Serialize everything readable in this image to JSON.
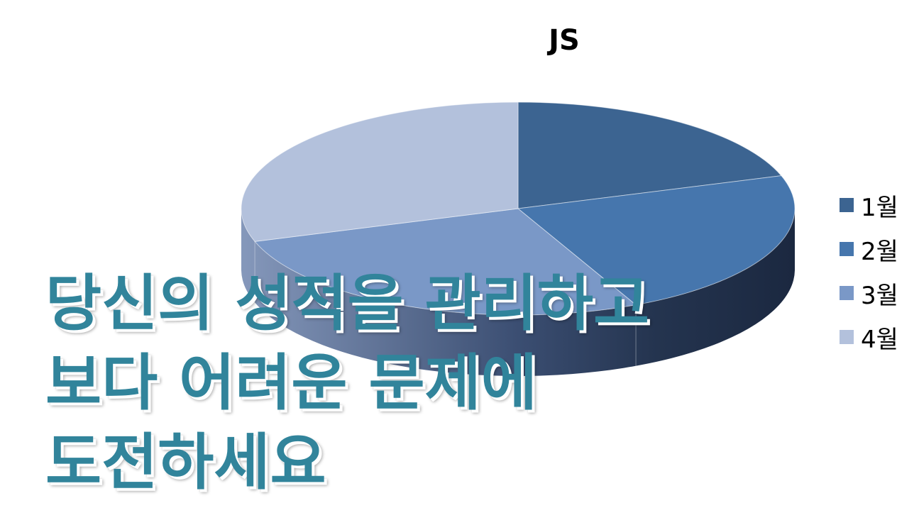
{
  "chart_data": {
    "type": "pie",
    "title": "JS",
    "categories": [
      "1월",
      "2월",
      "3월",
      "4월"
    ],
    "values": [
      20,
      23,
      27,
      30
    ],
    "legend_position": "right",
    "three_d": true
  },
  "colors": {
    "top": [
      "#3c6491",
      "#4676ad",
      "#7a98c7",
      "#b3c1dc"
    ],
    "side_dark": "#1f2e48",
    "side_light": "#7f93b5",
    "overlay_text": "#31849b"
  },
  "overlay": {
    "lines": [
      "당신의 성적을 관리하고",
      "보다 어려운 문제에",
      "도전하세요"
    ]
  }
}
